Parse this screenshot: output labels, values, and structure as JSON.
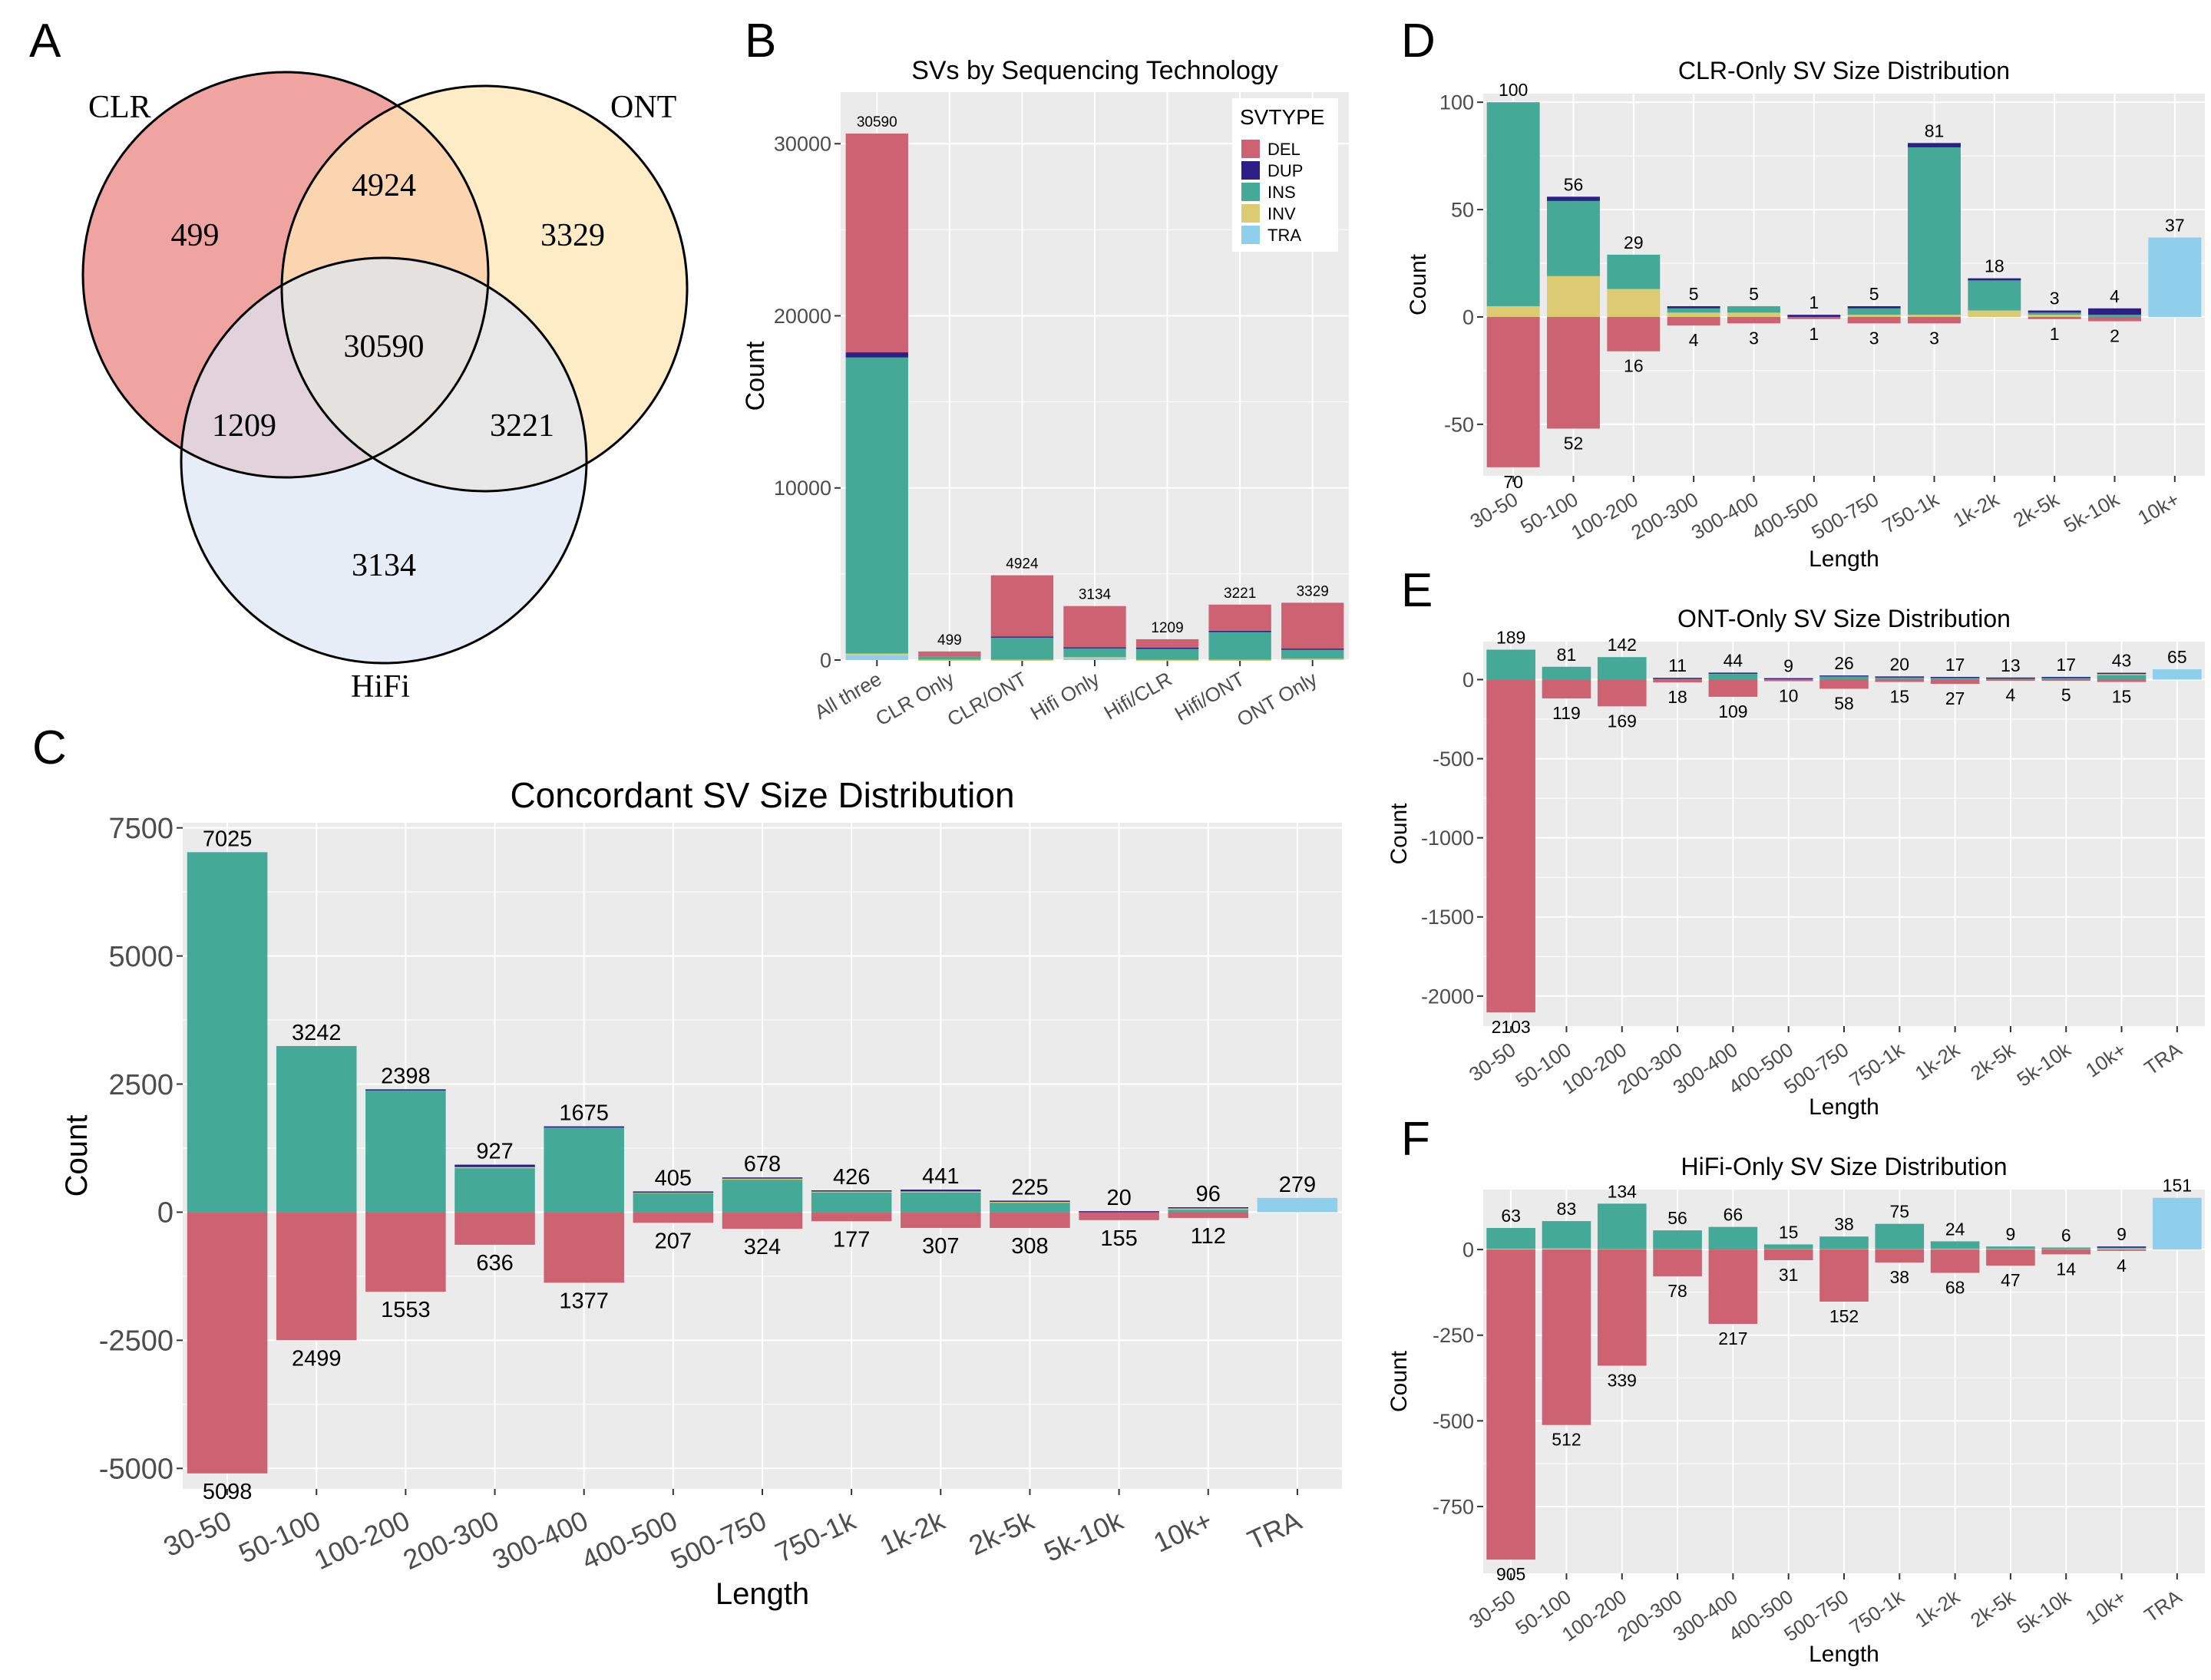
{
  "colors": {
    "DEL": "#cd6272",
    "DUP": "#2d1f85",
    "INS": "#45a998",
    "INV": "#dccb72",
    "TRA": "#8fcfec",
    "panel_bg": "#ebebeb",
    "grid": "#ffffff"
  },
  "panel_letters": [
    "A",
    "B",
    "C",
    "D",
    "E",
    "F"
  ],
  "venn": {
    "sets": [
      {
        "label": "CLR",
        "color": "#eb8a86"
      },
      {
        "label": "ONT",
        "color": "#fde6b4"
      },
      {
        "label": "HiFi",
        "color": "#dbe6f4"
      }
    ],
    "regions": {
      "clr_only": "499",
      "ont_only": "3329",
      "hifi_only": "3134",
      "clr_ont": "4924",
      "clr_hifi": "1209",
      "ont_hifi": "3221",
      "all": "30590"
    }
  },
  "chart_data": [
    {
      "id": "B",
      "type": "bar",
      "stacked": true,
      "title": "SVs by Sequencing Technology",
      "xlabel": "",
      "ylabel": "Count",
      "ylim": [
        0,
        33000
      ],
      "yticks": [
        0,
        10000,
        20000,
        30000
      ],
      "categories": [
        "All three",
        "CLR Only",
        "CLR/ONT",
        "Hifi Only",
        "Hifi/CLR",
        "Hifi/ONT",
        "ONT Only"
      ],
      "totals": [
        "30590",
        "499",
        "4924",
        "3134",
        "1209",
        "3221",
        "3329"
      ],
      "series": [
        {
          "name": "TRA",
          "values": [
            279,
            0,
            0,
            151,
            0,
            0,
            65
          ]
        },
        {
          "name": "INV",
          "values": [
            100,
            20,
            20,
            15,
            10,
            20,
            10
          ]
        },
        {
          "name": "INS",
          "values": [
            17200,
            200,
            1340,
            570,
            700,
            1600,
            580
          ]
        },
        {
          "name": "DUP",
          "values": [
            300,
            0,
            10,
            10,
            5,
            80,
            10
          ]
        },
        {
          "name": "DEL",
          "values": [
            12711,
            279,
            3554,
            2388,
            494,
            1521,
            2664
          ]
        }
      ],
      "legend": {
        "title": "SVTYPE",
        "position": "top-right",
        "items": [
          "DEL",
          "DUP",
          "INS",
          "INV",
          "TRA"
        ]
      }
    },
    {
      "id": "C",
      "type": "bar",
      "diverging": true,
      "title": "Concordant SV Size Distribution",
      "xlabel": "Length",
      "ylabel": "Count",
      "ylim": [
        -5400,
        7600
      ],
      "yticks": [
        -5000,
        -2500,
        0,
        2500,
        5000,
        7500
      ],
      "categories": [
        "30-50",
        "50-100",
        "100-200",
        "200-300",
        "300-400",
        "400-500",
        "500-750",
        "750-1k",
        "1k-2k",
        "2k-5k",
        "5k-10k",
        "10k+",
        "TRA"
      ],
      "pos_labels": [
        "7025",
        "3242",
        "2398",
        "927",
        "1675",
        "405",
        "678",
        "426",
        "441",
        "225",
        "20",
        "96",
        "279"
      ],
      "neg_labels": [
        "5098",
        "2499",
        "1553",
        "636",
        "1377",
        "207",
        "324",
        "177",
        "307",
        "308",
        "155",
        "112",
        ""
      ],
      "series": [
        {
          "name": "INS",
          "values": [
            7025,
            3242,
            2380,
            870,
            1665,
            390,
            650,
            400,
            400,
            200,
            10,
            50,
            0
          ]
        },
        {
          "name": "INV",
          "values": [
            0,
            0,
            0,
            10,
            0,
            5,
            5,
            5,
            5,
            5,
            5,
            30,
            0
          ]
        },
        {
          "name": "DUP",
          "values": [
            0,
            0,
            18,
            47,
            10,
            10,
            23,
            21,
            36,
            20,
            5,
            16,
            0
          ]
        },
        {
          "name": "TRA",
          "values": [
            0,
            0,
            0,
            0,
            0,
            0,
            0,
            0,
            0,
            0,
            0,
            0,
            279
          ]
        },
        {
          "name": "DEL",
          "values": [
            -5098,
            -2499,
            -1553,
            -636,
            -1377,
            -207,
            -324,
            -177,
            -307,
            -308,
            -155,
            -112,
            0
          ]
        }
      ]
    },
    {
      "id": "D",
      "type": "bar",
      "diverging": true,
      "title": "CLR-Only SV Size Distribution",
      "xlabel": "Length",
      "ylabel": "Count",
      "ylim": [
        -74,
        104
      ],
      "yticks": [
        -50,
        0,
        50,
        100
      ],
      "categories": [
        "30-50",
        "50-100",
        "100-200",
        "200-300",
        "300-400",
        "400-500",
        "500-750",
        "750-1k",
        "1k-2k",
        "2k-5k",
        "5k-10k",
        "10k+"
      ],
      "pos_labels": [
        "100",
        "56",
        "29",
        "5",
        "5",
        "1",
        "5",
        "81",
        "18",
        "3",
        "4",
        "37"
      ],
      "neg_labels": [
        "70",
        "52",
        "16",
        "4",
        "3",
        "1",
        "3",
        "3",
        "",
        "1",
        "2",
        ""
      ],
      "series": [
        {
          "name": "INV",
          "values": [
            5,
            19,
            13,
            2,
            2,
            0,
            1,
            1,
            3,
            1,
            0,
            0
          ]
        },
        {
          "name": "INS",
          "values": [
            95,
            35,
            16,
            2,
            3,
            0,
            3,
            78,
            14,
            1,
            1,
            0
          ]
        },
        {
          "name": "DUP",
          "values": [
            0,
            2,
            0,
            1,
            0,
            1,
            1,
            2,
            1,
            1,
            3,
            0
          ]
        },
        {
          "name": "TRA",
          "values": [
            0,
            0,
            0,
            0,
            0,
            0,
            0,
            0,
            0,
            0,
            0,
            37
          ]
        },
        {
          "name": "DEL",
          "values": [
            -70,
            -52,
            -16,
            -4,
            -3,
            -1,
            -3,
            -3,
            0,
            -1,
            -2,
            0
          ]
        }
      ]
    },
    {
      "id": "E",
      "type": "bar",
      "diverging": true,
      "title": "ONT-Only SV Size Distribution",
      "xlabel": "Length",
      "ylabel": "Count",
      "ylim": [
        -2190,
        240
      ],
      "yticks": [
        -2000,
        -1500,
        -1000,
        -500,
        0
      ],
      "categories": [
        "30-50",
        "50-100",
        "100-200",
        "200-300",
        "300-400",
        "400-500",
        "500-750",
        "750-1k",
        "1k-2k",
        "2k-5k",
        "5k-10k",
        "10k+",
        "TRA"
      ],
      "pos_labels": [
        "189",
        "81",
        "142",
        "11",
        "44",
        "9",
        "26",
        "20",
        "17",
        "13",
        "17",
        "43",
        "65"
      ],
      "neg_labels": [
        "2103",
        "119",
        "169",
        "18",
        "109",
        "10",
        "58",
        "15",
        "27",
        "4",
        "5",
        "15",
        ""
      ],
      "series": [
        {
          "name": "INS",
          "values": [
            189,
            81,
            142,
            8,
            42,
            7,
            22,
            18,
            13,
            10,
            14,
            30,
            0
          ]
        },
        {
          "name": "INV",
          "values": [
            0,
            0,
            0,
            2,
            1,
            1,
            2,
            1,
            2,
            2,
            2,
            5,
            0
          ]
        },
        {
          "name": "DUP",
          "values": [
            0,
            0,
            0,
            1,
            1,
            1,
            2,
            1,
            2,
            1,
            1,
            8,
            0
          ]
        },
        {
          "name": "TRA",
          "values": [
            0,
            0,
            0,
            0,
            0,
            0,
            0,
            0,
            0,
            0,
            0,
            0,
            65
          ]
        },
        {
          "name": "DEL",
          "values": [
            -2103,
            -119,
            -169,
            -18,
            -109,
            -10,
            -58,
            -15,
            -27,
            -4,
            -5,
            -15,
            0
          ]
        }
      ]
    },
    {
      "id": "F",
      "type": "bar",
      "diverging": true,
      "title": "HiFi-Only SV Size Distribution",
      "xlabel": "Length",
      "ylabel": "Count",
      "ylim": [
        -945,
        175
      ],
      "yticks": [
        -750,
        -500,
        -250,
        0
      ],
      "categories": [
        "30-50",
        "50-100",
        "100-200",
        "200-300",
        "300-400",
        "400-500",
        "500-750",
        "750-1k",
        "1k-2k",
        "2k-5k",
        "5k-10k",
        "10k+",
        "TRA"
      ],
      "pos_labels": [
        "63",
        "83",
        "134",
        "56",
        "66",
        "15",
        "38",
        "75",
        "24",
        "9",
        "6",
        "9",
        "151"
      ],
      "neg_labels": [
        "905",
        "512",
        "339",
        "78",
        "217",
        "31",
        "152",
        "38",
        "68",
        "47",
        "14",
        "4",
        ""
      ],
      "series": [
        {
          "name": "INV",
          "values": [
            2,
            3,
            1,
            1,
            0,
            1,
            1,
            1,
            2,
            2,
            1,
            3,
            0
          ]
        },
        {
          "name": "INS",
          "values": [
            61,
            80,
            133,
            55,
            66,
            14,
            37,
            74,
            22,
            7,
            5,
            5,
            0
          ]
        },
        {
          "name": "DUP",
          "values": [
            0,
            0,
            0,
            0,
            0,
            0,
            0,
            0,
            0,
            0,
            0,
            1,
            0
          ]
        },
        {
          "name": "TRA",
          "values": [
            0,
            0,
            0,
            0,
            0,
            0,
            0,
            0,
            0,
            0,
            0,
            0,
            151
          ]
        },
        {
          "name": "DEL",
          "values": [
            -905,
            -512,
            -339,
            -78,
            -217,
            -31,
            -152,
            -38,
            -68,
            -47,
            -14,
            -4,
            0
          ]
        }
      ]
    }
  ]
}
